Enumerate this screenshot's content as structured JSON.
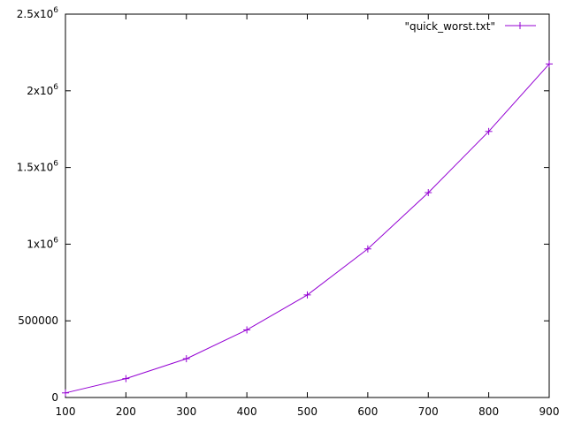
{
  "chart_data": {
    "type": "line",
    "title": "",
    "xlabel": "",
    "ylabel": "",
    "xlim": [
      100,
      900
    ],
    "ylim": [
      0,
      2500000
    ],
    "grid": false,
    "legend_position": "top-right",
    "x_ticks": [
      {
        "value": 100,
        "label": "100"
      },
      {
        "value": 200,
        "label": "200"
      },
      {
        "value": 300,
        "label": "300"
      },
      {
        "value": 400,
        "label": "400"
      },
      {
        "value": 500,
        "label": "500"
      },
      {
        "value": 600,
        "label": "600"
      },
      {
        "value": 700,
        "label": "700"
      },
      {
        "value": 800,
        "label": "800"
      },
      {
        "value": 900,
        "label": "900"
      }
    ],
    "y_ticks": [
      {
        "value": 0,
        "label": "0"
      },
      {
        "value": 500000,
        "label": "500000"
      },
      {
        "value": 1000000,
        "label": "1x10",
        "exp": "6"
      },
      {
        "value": 1500000,
        "label": "1.5x10",
        "exp": "6"
      },
      {
        "value": 2000000,
        "label": "2x10",
        "exp": "6"
      },
      {
        "value": 2500000,
        "label": "2.5x10",
        "exp": "6"
      }
    ],
    "series": [
      {
        "name": "\"quick_worst.txt\"",
        "color": "#9400d3",
        "marker": "plus",
        "x": [
          100,
          200,
          300,
          400,
          500,
          600,
          700,
          800,
          900
        ],
        "y": [
          30000,
          123000,
          253000,
          441000,
          669000,
          969000,
          1336000,
          1735000,
          2175000
        ]
      }
    ]
  }
}
